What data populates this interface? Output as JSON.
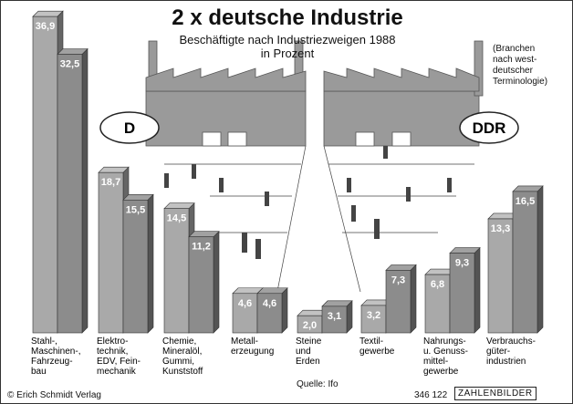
{
  "chart_data": {
    "type": "bar",
    "title": "2 x deutsche Industrie",
    "subtitle": "Beschäftigte nach Industriezweigen 1988\nin Prozent",
    "note": "(Branchen\nnach west-\ndeutscher\nTerminologie)",
    "source": "Quelle: Ifo",
    "copyright": "© Erich Schmidt Verlag",
    "code": "346 122",
    "brand": "ZAHLENBILDER",
    "categories": [
      "Stahl-,\nMaschinen-,\nFahrzeug-\nbau",
      "Elektro-\ntechnik,\nEDV, Fein-\nmechanik",
      "Chemie,\nMineralöl,\nGummi,\nKunststoff",
      "Metall-\nerzeugung",
      "Steine\nund\nErden",
      "Textil-\ngewerbe",
      "Nahrungs-\nu. Genuss-\nmittel-\ngewerbe",
      "Verbrauchs-\ngüter-\nindustrien"
    ],
    "series": [
      {
        "name": "D",
        "color": "#a9a9a9",
        "values": [
          36.9,
          18.7,
          14.5,
          4.6,
          2.0,
          3.2,
          6.8,
          13.3
        ],
        "value_labels": [
          "36,9",
          "18,7",
          "14,5",
          "4,6",
          "2,0",
          "3,2",
          "6,8",
          "13,3"
        ]
      },
      {
        "name": "DDR",
        "color": "#8c8c8c",
        "values": [
          32.5,
          15.5,
          11.2,
          4.6,
          3.1,
          7.3,
          9.3,
          16.5
        ],
        "value_labels": [
          "32,5",
          "15,5",
          "11,2",
          "4,6",
          "3,1",
          "7,3",
          "9,3",
          "16,5"
        ]
      }
    ]
  }
}
